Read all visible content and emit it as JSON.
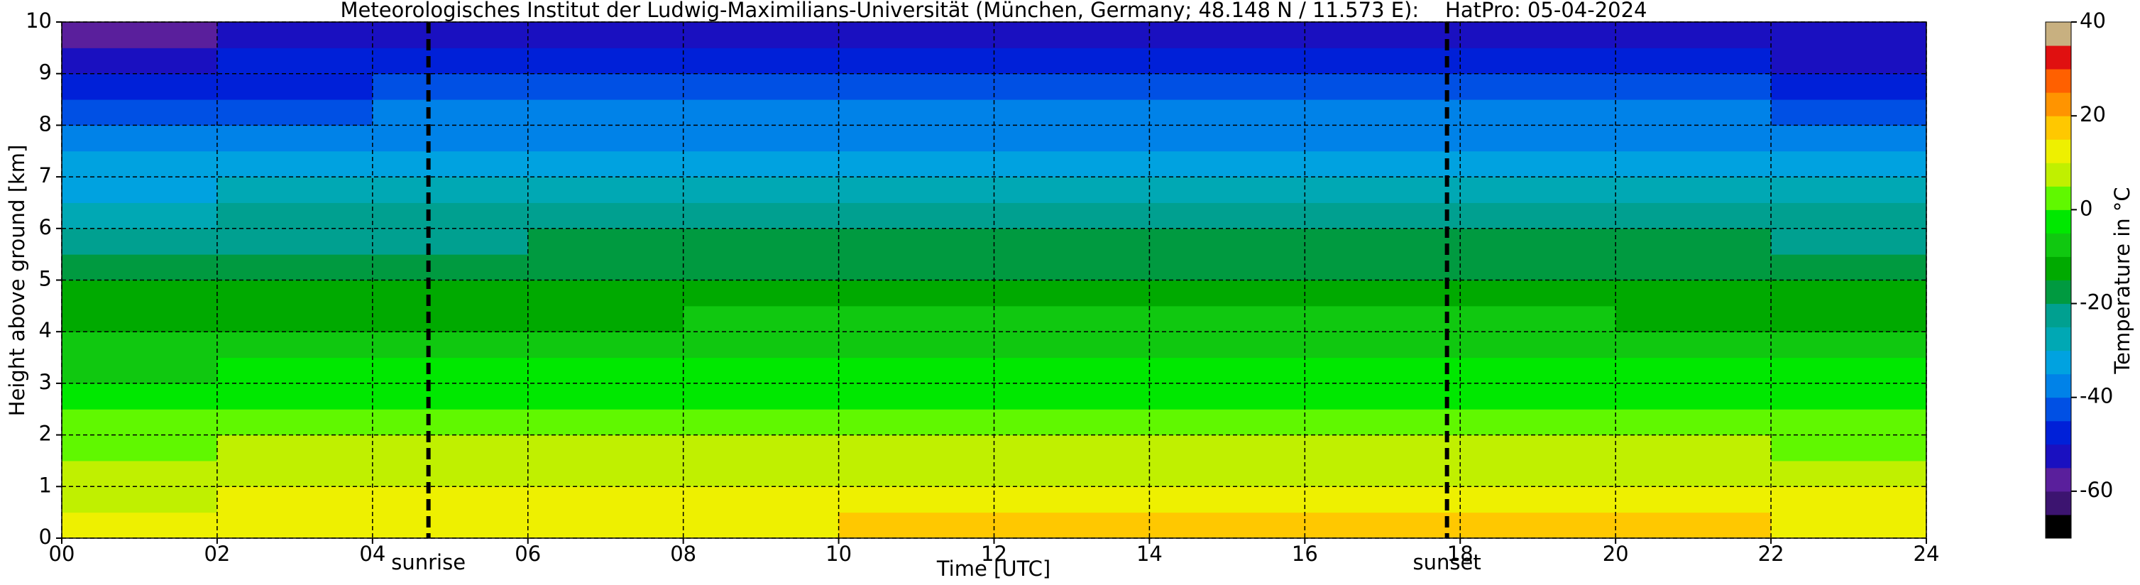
{
  "chart_data": {
    "type": "heatmap",
    "title": "Meteorologisches Institut der Ludwig-Maximilians-Universität (München, Germany; 48.148 N / 11.573 E):    HatPro: 05-04-2024",
    "xlabel": "Time [UTC]",
    "ylabel": "Height above ground [km]",
    "x_edges": [
      0,
      2,
      4,
      6,
      8,
      10,
      12,
      14,
      16,
      18,
      20,
      22,
      24
    ],
    "y_edges": [
      0,
      0.5,
      1,
      1.5,
      2,
      2.5,
      3,
      3.5,
      4,
      4.5,
      5,
      5.5,
      6,
      6.5,
      7,
      7.5,
      8,
      8.5,
      9,
      9.5,
      10
    ],
    "z": [
      [
        12,
        13,
        13,
        14,
        14,
        15,
        17,
        18,
        18,
        17,
        15,
        14
      ],
      [
        9,
        10,
        10,
        10,
        11,
        11,
        12,
        12,
        12,
        12,
        11,
        10
      ],
      [
        6,
        7,
        7,
        7,
        8,
        8,
        8,
        8,
        8,
        8,
        8,
        7
      ],
      [
        3,
        5,
        5,
        5,
        5,
        5,
        5,
        5,
        5,
        5,
        5,
        4
      ],
      [
        0,
        2,
        2,
        2,
        2,
        2,
        2,
        2,
        2,
        2,
        2,
        1
      ],
      [
        -3,
        -1,
        -1,
        -1,
        -1,
        -1,
        -1,
        -1,
        -1,
        -1,
        -1,
        -2
      ],
      [
        -6,
        -4,
        -4,
        -4,
        -4,
        -4,
        -4,
        -4,
        -4,
        -4,
        -4,
        -5
      ],
      [
        -9,
        -7,
        -7,
        -7,
        -7,
        -7,
        -7,
        -7,
        -7,
        -7,
        -7,
        -8
      ],
      [
        -12,
        -11,
        -11,
        -11,
        -10,
        -10,
        -10,
        -10,
        -10,
        -10,
        -11,
        -11
      ],
      [
        -15,
        -14,
        -14,
        -14,
        -13,
        -13,
        -13,
        -13,
        -13,
        -13,
        -14,
        -14
      ],
      [
        -19,
        -17,
        -17,
        -16,
        -16,
        -16,
        -16,
        -16,
        -16,
        -16,
        -16,
        -17
      ],
      [
        -23,
        -21,
        -21,
        -20,
        -20,
        -19,
        -19,
        -19,
        -19,
        -19,
        -20,
        -21
      ],
      [
        -27,
        -25,
        -24,
        -24,
        -23,
        -23,
        -23,
        -23,
        -23,
        -23,
        -24,
        -25
      ],
      [
        -31,
        -29,
        -28,
        -28,
        -28,
        -28,
        -28,
        -28,
        -28,
        -28,
        -28,
        -29
      ],
      [
        -35,
        -33,
        -32,
        -32,
        -32,
        -32,
        -32,
        -32,
        -32,
        -32,
        -32,
        -33
      ],
      [
        -39,
        -37,
        -36,
        -36,
        -36,
        -36,
        -36,
        -36,
        -36,
        -36,
        -36,
        -37
      ],
      [
        -44,
        -41,
        -40,
        -40,
        -40,
        -40,
        -40,
        -40,
        -40,
        -40,
        -40,
        -41
      ],
      [
        -49,
        -46,
        -44,
        -44,
        -44,
        -44,
        -44,
        -44,
        -44,
        -44,
        -45,
        -46
      ],
      [
        -54,
        -50,
        -48,
        -48,
        -48,
        -48,
        -48,
        -48,
        -48,
        -48,
        -50,
        -51
      ],
      [
        -58,
        -54,
        -52,
        -52,
        -52,
        -52,
        -52,
        -52,
        -52,
        -52,
        -53,
        -54
      ]
    ],
    "xlim": [
      0,
      24
    ],
    "xticks": [
      {
        "value": 0,
        "label": "00"
      },
      {
        "value": 2,
        "label": "02"
      },
      {
        "value": 4,
        "label": "04"
      },
      {
        "value": 6,
        "label": "06"
      },
      {
        "value": 8,
        "label": "08"
      },
      10,
      12,
      14,
      16,
      18,
      20,
      22,
      24
    ],
    "ylim": [
      0,
      10
    ],
    "yticks": [
      0,
      1,
      2,
      3,
      4,
      5,
      6,
      7,
      8,
      9,
      10
    ],
    "grid": true,
    "annotations": [
      {
        "text": "sunrise",
        "x": 4.72
      },
      {
        "text": "sunset",
        "x": 17.83
      }
    ],
    "colorbar": {
      "label": "Temperature in °C",
      "levels": [
        -70,
        -65,
        -60,
        -55,
        -50,
        -45,
        -40,
        -35,
        -30,
        -25,
        -20,
        -15,
        -10,
        -5,
        0,
        5,
        10,
        15,
        20,
        25,
        30,
        35,
        40
      ],
      "colors": [
        "#000000",
        "#3c1470",
        "#5a1f9c",
        "#1a10c0",
        "#0020d8",
        "#0050e4",
        "#0082e8",
        "#00a2e0",
        "#00a8b4",
        "#00a090",
        "#009a40",
        "#00aa00",
        "#10c810",
        "#00e800",
        "#60f800",
        "#c0f000",
        "#eef000",
        "#ffc800",
        "#ff9400",
        "#ff6000",
        "#e01010",
        "#c8b080"
      ],
      "ticks": [
        -60,
        -40,
        -20,
        0,
        20,
        40
      ]
    }
  }
}
